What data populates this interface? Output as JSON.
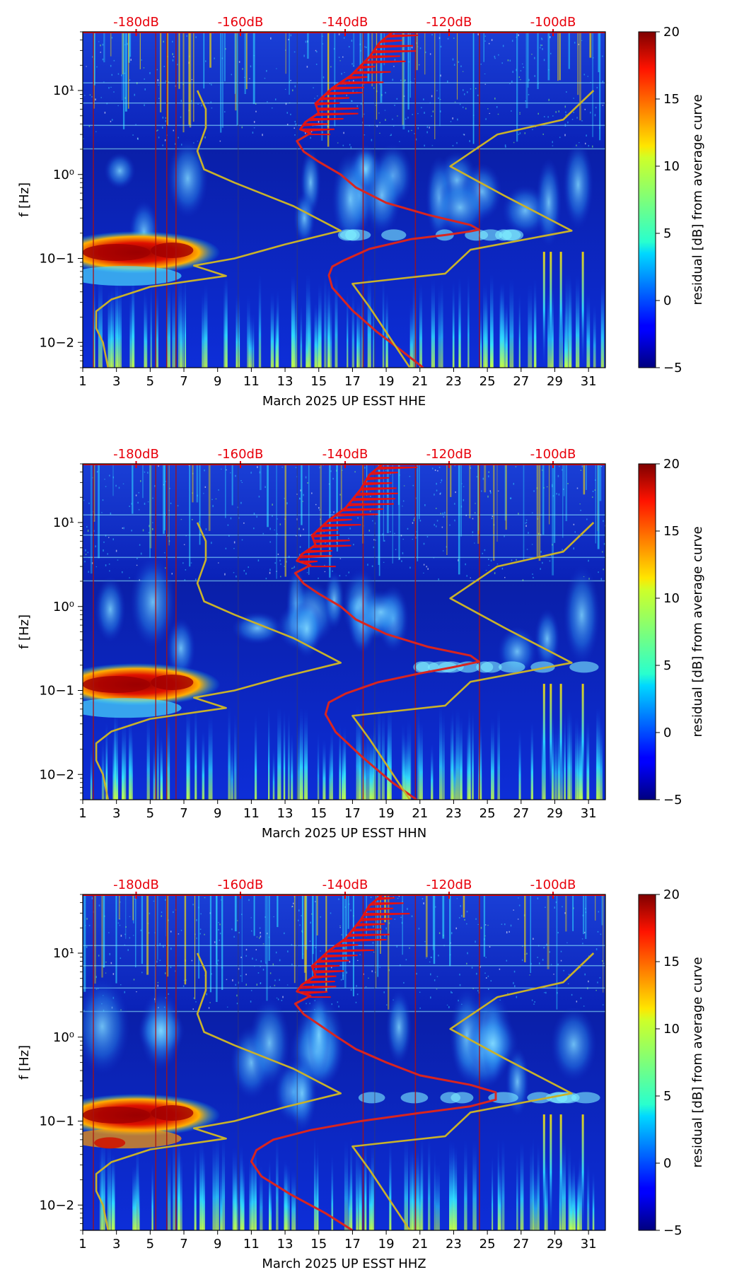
{
  "chart_data": [
    {
      "type": "heatmap",
      "xlabel": "March 2025 UP ESST  HHE",
      "ylabel": "f [Hz]",
      "colorbar_label": "residual [dB] from average curve",
      "x_ticks": [
        "1",
        "3",
        "5",
        "7",
        "9",
        "11",
        "13",
        "15",
        "17",
        "19",
        "21",
        "23",
        "25",
        "27",
        "29",
        "31"
      ],
      "xlim": [
        1,
        32
      ],
      "y_ticks": [
        "10−2",
        "10−1",
        "10⁰",
        "10¹"
      ],
      "ylim": [
        0.005,
        50
      ],
      "y_scale": "log",
      "colorbar_ticks": [
        "20",
        "15",
        "10",
        "5",
        "0",
        "−5"
      ],
      "clim": [
        -5,
        20
      ],
      "colormap": "jet",
      "top_axis_ticks": [
        "-180dB",
        "-160dB",
        "-140dB",
        "-120dB",
        "-100dB"
      ],
      "top_axis_values": [
        -180,
        -160,
        -140,
        -120,
        -100
      ],
      "top_axis_color": "#e8000b",
      "series": [
        {
          "color": "#d9251f",
          "x": [
            21.2,
            20.0,
            18.4,
            17.0,
            15.8,
            15.6,
            15.8,
            16.5,
            18.0,
            20.5,
            22.5,
            24.0,
            24.5,
            24.0,
            21.5,
            19.0,
            17.2,
            16.3,
            15.0,
            14.1,
            13.7,
            14.5,
            13.9,
            14.2,
            15.0,
            14.8,
            15.8,
            16.9,
            18.0,
            18.6,
            19.4
          ],
          "y": [
            0.005,
            0.0077,
            0.0136,
            0.024,
            0.045,
            0.063,
            0.08,
            0.095,
            0.13,
            0.17,
            0.19,
            0.21,
            0.22,
            0.25,
            0.33,
            0.46,
            0.7,
            1.0,
            1.42,
            1.88,
            2.5,
            3.1,
            3.45,
            4.2,
            5.4,
            7.0,
            10.7,
            15.0,
            25.0,
            37.0,
            50.0
          ]
        },
        {
          "color": "#c9b22a",
          "x": [
            2.5,
            2.2,
            1.8,
            1.8,
            2.7,
            5.0,
            9.5,
            7.6,
            10.0,
            13.0,
            16.3,
            13.5,
            10.0,
            8.2,
            7.8,
            8.3,
            8.3,
            7.8
          ],
          "y": [
            0.005,
            0.01,
            0.0147,
            0.0235,
            0.0325,
            0.046,
            0.062,
            0.082,
            0.1,
            0.147,
            0.214,
            0.42,
            0.8,
            1.15,
            1.9,
            3.6,
            6.0,
            10.0
          ]
        },
        {
          "color": "#c9b22a",
          "x": [
            20.4,
            18.0,
            17.0,
            22.5,
            24.0,
            30.0,
            26.0,
            22.8,
            25.6,
            29.5,
            31.3
          ],
          "y": [
            0.005,
            0.0265,
            0.05,
            0.066,
            0.127,
            0.214,
            0.56,
            1.25,
            3.0,
            4.5,
            10.0
          ]
        }
      ]
    },
    {
      "type": "heatmap",
      "xlabel": "March 2025 UP ESST  HHN",
      "ylabel": "f [Hz]",
      "colorbar_label": "residual [dB] from average curve",
      "x_ticks": [
        "1",
        "3",
        "5",
        "7",
        "9",
        "11",
        "13",
        "15",
        "17",
        "19",
        "21",
        "23",
        "25",
        "27",
        "29",
        "31"
      ],
      "xlim": [
        1,
        32
      ],
      "y_ticks": [
        "10−2",
        "10−1",
        "10⁰",
        "10¹"
      ],
      "ylim": [
        0.005,
        50
      ],
      "y_scale": "log",
      "colorbar_ticks": [
        "20",
        "15",
        "10",
        "5",
        "0",
        "−5"
      ],
      "clim": [
        -5,
        20
      ],
      "colormap": "jet",
      "top_axis_ticks": [
        "-180dB",
        "-160dB",
        "-140dB",
        "-120dB",
        "-100dB"
      ],
      "top_axis_values": [
        -180,
        -160,
        -140,
        -120,
        -100
      ],
      "top_axis_color": "#e8000b",
      "series": [
        {
          "color": "#d9251f",
          "x": [
            20.8,
            19.3,
            17.6,
            16.0,
            15.4,
            15.6,
            16.6,
            18.5,
            21.0,
            23.0,
            24.5,
            24.0,
            21.5,
            19.0,
            17.2,
            16.3,
            15.0,
            14.1,
            13.6,
            14.5,
            13.7,
            14.0,
            14.8,
            14.6,
            15.6,
            16.6,
            17.5,
            18.0,
            18.8
          ],
          "y": [
            0.005,
            0.0082,
            0.016,
            0.032,
            0.052,
            0.072,
            0.092,
            0.125,
            0.16,
            0.19,
            0.22,
            0.26,
            0.33,
            0.47,
            0.7,
            1.0,
            1.42,
            1.88,
            2.5,
            3.1,
            3.5,
            4.2,
            5.4,
            7.0,
            10.7,
            15.0,
            25.0,
            37.0,
            50.0
          ]
        },
        {
          "color": "#c9b22a",
          "x": [
            2.5,
            2.2,
            1.8,
            1.8,
            2.7,
            5.0,
            9.5,
            7.6,
            10.0,
            13.0,
            16.3,
            13.5,
            10.0,
            8.2,
            7.8,
            8.3,
            8.3,
            7.8
          ],
          "y": [
            0.005,
            0.01,
            0.0147,
            0.0235,
            0.0325,
            0.046,
            0.062,
            0.082,
            0.1,
            0.147,
            0.214,
            0.42,
            0.8,
            1.15,
            1.9,
            3.6,
            6.0,
            10.0
          ]
        },
        {
          "color": "#c9b22a",
          "x": [
            20.4,
            18.0,
            17.0,
            22.5,
            24.0,
            30.0,
            26.0,
            22.8,
            25.6,
            29.5,
            31.3
          ],
          "y": [
            0.005,
            0.0265,
            0.05,
            0.066,
            0.127,
            0.214,
            0.56,
            1.25,
            3.0,
            4.5,
            10.0
          ]
        }
      ]
    },
    {
      "type": "heatmap",
      "xlabel": "March 2025 UP ESST  HHZ",
      "ylabel": "f [Hz]",
      "colorbar_label": "residual [dB] from average curve",
      "x_ticks": [
        "1",
        "3",
        "5",
        "7",
        "9",
        "11",
        "13",
        "15",
        "17",
        "19",
        "21",
        "23",
        "25",
        "27",
        "29",
        "31"
      ],
      "xlim": [
        1,
        32
      ],
      "y_ticks": [
        "10−2",
        "10−1",
        "10⁰",
        "10¹"
      ],
      "ylim": [
        0.005,
        50
      ],
      "y_scale": "log",
      "colorbar_ticks": [
        "20",
        "15",
        "10",
        "5",
        "0",
        "−5"
      ],
      "clim": [
        -5,
        20
      ],
      "colormap": "jet",
      "top_axis_ticks": [
        "-180dB",
        "-160dB",
        "-140dB",
        "-120dB",
        "-100dB"
      ],
      "top_axis_values": [
        -180,
        -160,
        -140,
        -120,
        -100
      ],
      "top_axis_color": "#e8000b",
      "series": [
        {
          "color": "#d9251f",
          "x": [
            17.0,
            15.4,
            13.3,
            11.6,
            11.0,
            11.3,
            12.3,
            14.5,
            17.5,
            21.0,
            24.0,
            25.5,
            25.5,
            24.0,
            21.0,
            19.0,
            17.2,
            16.1,
            15.0,
            14.1,
            13.6,
            14.5,
            13.7,
            14.0,
            14.8,
            14.6,
            15.6,
            16.6,
            17.5,
            18.0,
            18.8
          ],
          "y": [
            0.005,
            0.008,
            0.0135,
            0.022,
            0.033,
            0.045,
            0.06,
            0.078,
            0.1,
            0.125,
            0.15,
            0.18,
            0.22,
            0.27,
            0.35,
            0.5,
            0.72,
            1.0,
            1.42,
            1.88,
            2.5,
            3.1,
            3.5,
            4.2,
            5.4,
            7.0,
            10.7,
            15.0,
            25.0,
            37.0,
            50.0
          ]
        },
        {
          "color": "#c9b22a",
          "x": [
            2.5,
            2.2,
            1.8,
            1.8,
            2.7,
            5.0,
            9.5,
            7.6,
            10.0,
            13.0,
            16.3,
            13.5,
            10.0,
            8.2,
            7.8,
            8.3,
            8.3,
            7.8
          ],
          "y": [
            0.005,
            0.01,
            0.0147,
            0.0235,
            0.0325,
            0.046,
            0.062,
            0.082,
            0.1,
            0.147,
            0.214,
            0.42,
            0.8,
            1.15,
            1.9,
            3.6,
            6.0,
            10.0
          ]
        },
        {
          "color": "#c9b22a",
          "x": [
            20.4,
            18.0,
            17.0,
            22.5,
            24.0,
            30.0,
            26.0,
            22.8,
            25.6,
            29.5,
            31.3
          ],
          "y": [
            0.005,
            0.0265,
            0.05,
            0.066,
            0.127,
            0.214,
            0.56,
            1.25,
            3.0,
            4.5,
            10.0
          ]
        }
      ]
    }
  ]
}
